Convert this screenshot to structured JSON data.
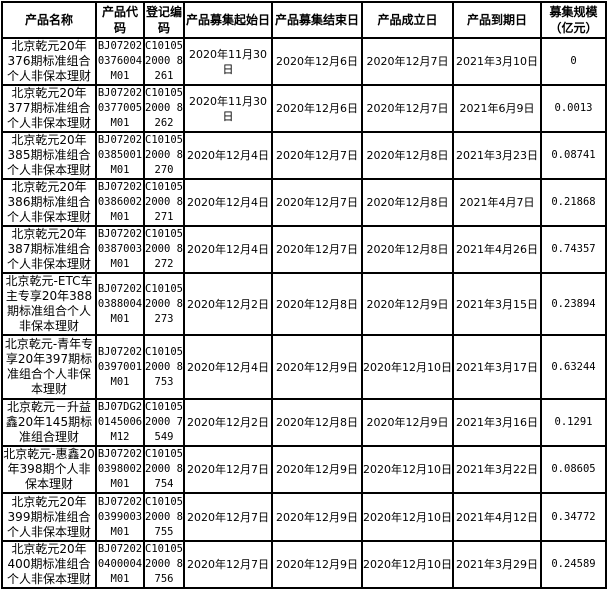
{
  "headers": [
    "产品名称",
    "产品代码",
    "登记编码",
    "产品募集起始日",
    "产品募集结束日",
    "产品成立日",
    "产品到期日",
    "募集规模（亿元）"
  ],
  "rows": [
    {
      "name": "北京乾元20年376期标准组合个人非保本理财",
      "code": "BJ072020376004M01",
      "reg": "C101052000 8261",
      "start": "2020年11月30日",
      "end": "2020年12月6日",
      "found": "2020年12月7日",
      "mature": "2021年3月10日",
      "size": "0"
    },
    {
      "name": "北京乾元20年377期标准组合个人非保本理财",
      "code": "BJ072020377005M01",
      "reg": "C101052000 8262",
      "start": "2020年11月30日",
      "end": "2020年12月6日",
      "found": "2020年12月7日",
      "mature": "2021年6月9日",
      "size": "0.0013"
    },
    {
      "name": "北京乾元20年385期标准组合个人非保本理财",
      "code": "BJ072020385001M01",
      "reg": "C101052000 8270",
      "start": "2020年12月4日",
      "end": "2020年12月7日",
      "found": "2020年12月8日",
      "mature": "2021年3月23日",
      "size": "0.08741"
    },
    {
      "name": "北京乾元20年386期标准组合个人非保本理财",
      "code": "BJ072020386002M01",
      "reg": "C101052000 8271",
      "start": "2020年12月4日",
      "end": "2020年12月7日",
      "found": "2020年12月8日",
      "mature": "2021年4月7日",
      "size": "0.21868"
    },
    {
      "name": "北京乾元20年387期标准组合个人非保本理财",
      "code": "BJ072020387003M01",
      "reg": "C101052000 8272",
      "start": "2020年12月4日",
      "end": "2020年12月7日",
      "found": "2020年12月8日",
      "mature": "2021年4月26日",
      "size": "0.74357"
    },
    {
      "name": "北京乾元-ETC车主专享20年388期标准组合个人非保本理财",
      "code": "BJ072020388004M01",
      "reg": "C101052000 8273",
      "start": "2020年12月2日",
      "end": "2020年12月8日",
      "found": "2020年12月9日",
      "mature": "2021年3月15日",
      "size": "0.23894"
    },
    {
      "name": "北京乾元-青年专享20年397期标准组合个人非保本理财",
      "code": "BJ072020397001M01",
      "reg": "C101052000 8753",
      "start": "2020年12月4日",
      "end": "2020年12月9日",
      "found": "2020年12月10日",
      "mature": "2021年3月17日",
      "size": "0.63244"
    },
    {
      "name": "北京乾元－升益鑫20年145期标准组合理财",
      "code": "BJ07DG20145006M12",
      "reg": "C101052000 7549",
      "start": "2020年12月2日",
      "end": "2020年12月8日",
      "found": "2020年12月9日",
      "mature": "2021年3月16日",
      "size": "0.1291"
    },
    {
      "name": "北京乾元-惠鑫20年398期个人非保本理财",
      "code": "BJ072020398002M01",
      "reg": "C101052000 8754",
      "start": "2020年12月7日",
      "end": "2020年12月9日",
      "found": "2020年12月10日",
      "mature": "2021年3月22日",
      "size": "0.08605"
    },
    {
      "name": "北京乾元20年399期标准组合个人非保本理财",
      "code": "BJ072020399003M01",
      "reg": "C101052000 8755",
      "start": "2020年12月7日",
      "end": "2020年12月9日",
      "found": "2020年12月10日",
      "mature": "2021年4月12日",
      "size": "0.34772"
    },
    {
      "name": "北京乾元20年400期标准组合个人非保本理财",
      "code": "BJ072020400004M01",
      "reg": "C101052000 8756",
      "start": "2020年12月7日",
      "end": "2020年12月9日",
      "found": "2020年12月10日",
      "mature": "2021年3月29日",
      "size": "0.24589"
    }
  ]
}
